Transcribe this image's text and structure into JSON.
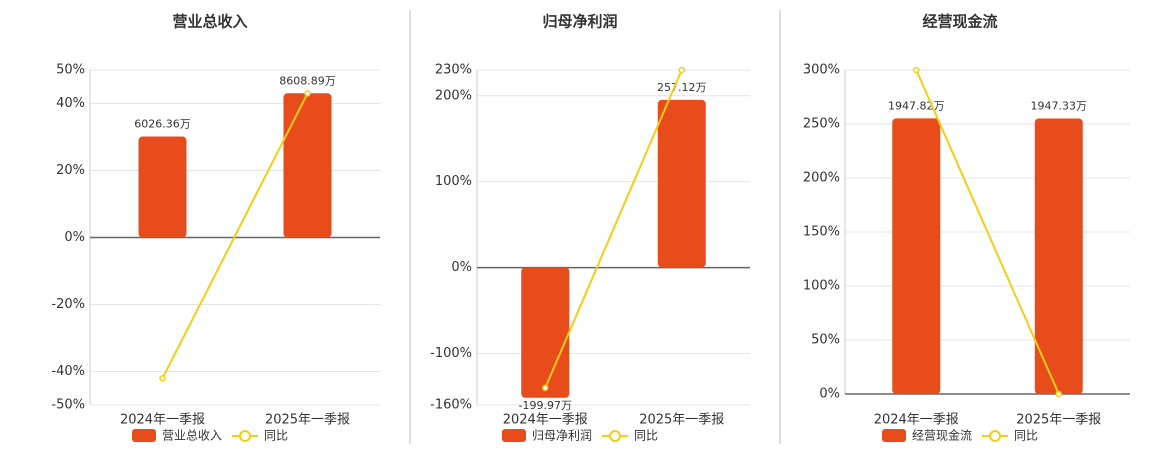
{
  "chart_data": [
    {
      "type": "bar-line",
      "title": "营业总收入",
      "categories": [
        "2024年一季报",
        "2025年一季报"
      ],
      "ylim": [
        -50,
        50
      ],
      "yticks": [
        {
          "value": -50,
          "label": "-50%"
        },
        {
          "value": -40,
          "label": "-40%"
        },
        {
          "value": -20,
          "label": "-20%"
        },
        {
          "value": 0,
          "label": "0%"
        },
        {
          "value": 20,
          "label": "20%"
        },
        {
          "value": 40,
          "label": "40%"
        },
        {
          "value": 50,
          "label": "50%"
        }
      ],
      "y2lim": [
        -10000,
        10000
      ],
      "grid": true,
      "series": [
        {
          "name": "营业总收入",
          "type": "bar",
          "color": "#e84c1b",
          "axis": "y2",
          "values": [
            6026.36,
            8608.89
          ],
          "value_labels": [
            "6026.36万",
            "8608.89万"
          ]
        },
        {
          "name": "同比",
          "type": "line",
          "color": "#f5cc16",
          "values": [
            -42,
            43
          ]
        }
      ]
    },
    {
      "type": "bar-line",
      "title": "归母净利润",
      "categories": [
        "2024年一季报",
        "2025年一季报"
      ],
      "ylim": [
        -160,
        230
      ],
      "yticks": [
        {
          "value": -160,
          "label": "-160%"
        },
        {
          "value": -100,
          "label": "-100%"
        },
        {
          "value": 0,
          "label": "0%"
        },
        {
          "value": 100,
          "label": "100%"
        },
        {
          "value": 200,
          "label": "200%"
        },
        {
          "value": 230,
          "label": "230%"
        }
      ],
      "y2lim": [
        -211,
        303
      ],
      "grid": true,
      "series": [
        {
          "name": "归母净利润",
          "type": "bar",
          "color": "#e84c1b",
          "axis": "y2",
          "values": [
            -199.97,
            257.12
          ],
          "value_labels": [
            "-199.97万",
            "257.12万"
          ]
        },
        {
          "name": "同比",
          "type": "line",
          "color": "#f5cc16",
          "values": [
            -140,
            230
          ]
        }
      ]
    },
    {
      "type": "bar-line",
      "title": "经营现金流",
      "categories": [
        "2024年一季报",
        "2025年一季报"
      ],
      "ylim": [
        0,
        300
      ],
      "yticks": [
        {
          "value": 0,
          "label": "0%"
        },
        {
          "value": 50,
          "label": "50%"
        },
        {
          "value": 100,
          "label": "100%"
        },
        {
          "value": 150,
          "label": "150%"
        },
        {
          "value": 200,
          "label": "200%"
        },
        {
          "value": 250,
          "label": "250%"
        },
        {
          "value": 300,
          "label": "300%"
        }
      ],
      "y2lim": [
        0,
        2290
      ],
      "grid": true,
      "series": [
        {
          "name": "经营现金流",
          "type": "bar",
          "color": "#e84c1b",
          "axis": "y2",
          "values": [
            1947.82,
            1947.33
          ],
          "value_labels": [
            "1947.82万",
            "1947.33万"
          ]
        },
        {
          "name": "同比",
          "type": "line",
          "color": "#f5cc16",
          "values": [
            300,
            0
          ]
        }
      ]
    }
  ]
}
